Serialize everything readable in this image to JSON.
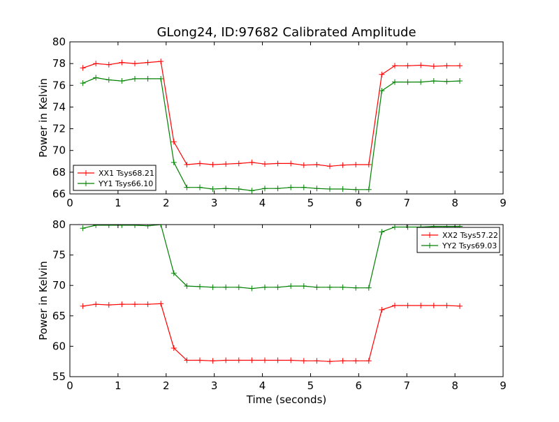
{
  "title": "GLong24, ID:97682 Calibrated Amplitude",
  "colors": {
    "xx": "#ff0000",
    "yy": "#008000",
    "axes": "#000000",
    "background": "#ffffff"
  },
  "chart_data": [
    {
      "type": "line",
      "title": "GLong24, ID:97682 Calibrated Amplitude",
      "xlabel": "",
      "ylabel": "Power in Kelvin",
      "xlim": [
        0,
        9
      ],
      "ylim": [
        66,
        80
      ],
      "xticks": [
        0,
        1,
        2,
        3,
        4,
        5,
        6,
        7,
        8,
        9
      ],
      "yticks": [
        66,
        68,
        70,
        72,
        74,
        76,
        78,
        80
      ],
      "grid": false,
      "legend_position": "lower-left",
      "x": [
        0.27,
        0.54,
        0.81,
        1.08,
        1.35,
        1.62,
        1.89,
        2.16,
        2.43,
        2.7,
        2.97,
        3.24,
        3.51,
        3.78,
        4.05,
        4.32,
        4.59,
        4.86,
        5.13,
        5.4,
        5.67,
        5.94,
        6.21,
        6.48,
        6.75,
        7.02,
        7.29,
        7.56,
        7.83,
        8.1
      ],
      "series": [
        {
          "name": "XX1 Tsys68.21",
          "color": "#ff0000",
          "values": [
            77.6,
            78.0,
            77.9,
            78.1,
            78.0,
            78.1,
            78.2,
            70.8,
            68.7,
            68.8,
            68.7,
            68.75,
            68.8,
            68.9,
            68.75,
            68.8,
            68.8,
            68.65,
            68.7,
            68.55,
            68.65,
            68.7,
            68.7,
            77.0,
            77.8,
            77.8,
            77.85,
            77.75,
            77.8,
            77.8
          ]
        },
        {
          "name": "YY1 Tsys66.10",
          "color": "#008000",
          "values": [
            76.2,
            76.7,
            76.5,
            76.4,
            76.6,
            76.6,
            76.6,
            68.9,
            66.6,
            66.6,
            66.45,
            66.5,
            66.45,
            66.3,
            66.5,
            66.5,
            66.6,
            66.6,
            66.5,
            66.45,
            66.45,
            66.4,
            66.4,
            75.5,
            76.3,
            76.3,
            76.3,
            76.4,
            76.35,
            76.4
          ]
        }
      ]
    },
    {
      "type": "line",
      "title": "",
      "xlabel": "Time (seconds)",
      "ylabel": "Power in Kelvin",
      "xlim": [
        0,
        9
      ],
      "ylim": [
        55,
        80
      ],
      "xticks": [
        0,
        1,
        2,
        3,
        4,
        5,
        6,
        7,
        8,
        9
      ],
      "yticks": [
        55,
        60,
        65,
        70,
        75,
        80
      ],
      "grid": false,
      "legend_position": "upper-right",
      "x": [
        0.27,
        0.54,
        0.81,
        1.08,
        1.35,
        1.62,
        1.89,
        2.16,
        2.43,
        2.7,
        2.97,
        3.24,
        3.51,
        3.78,
        4.05,
        4.32,
        4.59,
        4.86,
        5.13,
        5.4,
        5.67,
        5.94,
        6.21,
        6.48,
        6.75,
        7.02,
        7.29,
        7.56,
        7.83,
        8.1
      ],
      "series": [
        {
          "name": "XX2 Tsys57.22",
          "color": "#ff0000",
          "values": [
            66.6,
            66.9,
            66.8,
            66.9,
            66.9,
            66.9,
            67.0,
            59.7,
            57.7,
            57.7,
            57.6,
            57.7,
            57.7,
            57.7,
            57.7,
            57.7,
            57.7,
            57.6,
            57.6,
            57.5,
            57.6,
            57.6,
            57.6,
            66.0,
            66.7,
            66.7,
            66.7,
            66.7,
            66.7,
            66.6
          ]
        },
        {
          "name": "YY2 Tsys69.03",
          "color": "#008000",
          "values": [
            79.4,
            79.9,
            79.9,
            79.9,
            79.9,
            79.8,
            80.0,
            72.0,
            69.9,
            69.8,
            69.7,
            69.7,
            69.7,
            69.5,
            69.7,
            69.7,
            69.9,
            69.9,
            69.7,
            69.7,
            69.7,
            69.6,
            69.6,
            78.8,
            79.6,
            79.6,
            79.6,
            79.7,
            79.7,
            79.7
          ]
        }
      ]
    }
  ]
}
